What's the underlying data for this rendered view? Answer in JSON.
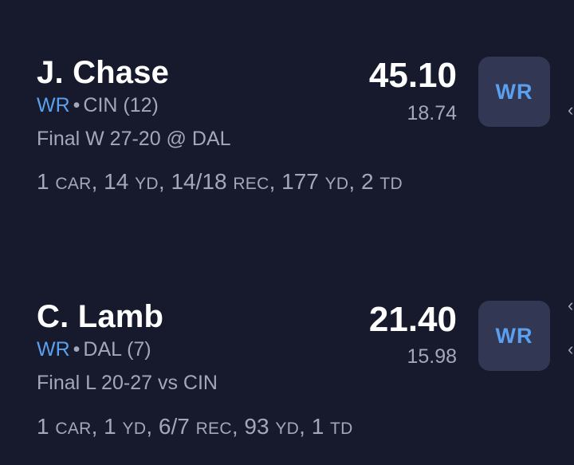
{
  "players": [
    {
      "name": "J. Chase",
      "position": "WR",
      "separator": "•",
      "team": "CIN (12)",
      "result": "Final W 27-20 @ DAL",
      "points": "45.10",
      "projection": "18.74",
      "badge": "WR",
      "stats": {
        "car_value": "1",
        "car_label": "CAR",
        "car_yd_value": "14",
        "car_yd_label": "YD",
        "rec_value": "14/18",
        "rec_label": "REC",
        "rec_yd_value": "177",
        "rec_yd_label": "YD",
        "td_value": "2",
        "td_label": "TD"
      }
    },
    {
      "name": "C. Lamb",
      "position": "WR",
      "separator": "•",
      "team": "DAL (7)",
      "result": "Final L 20-27 vs CIN",
      "points": "21.40",
      "projection": "15.98",
      "badge": "WR",
      "stats": {
        "car_value": "1",
        "car_label": "CAR",
        "car_yd_value": "1",
        "car_yd_label": "YD",
        "rec_value": "6/7",
        "rec_label": "REC",
        "rec_yd_value": "93",
        "rec_yd_label": "YD",
        "td_value": "1",
        "td_label": "TD"
      }
    }
  ],
  "colors": {
    "background": "#171a2c",
    "accent": "#5aa0ef",
    "secondary_text": "#a3a7bb",
    "badge_bg": "#323753"
  }
}
